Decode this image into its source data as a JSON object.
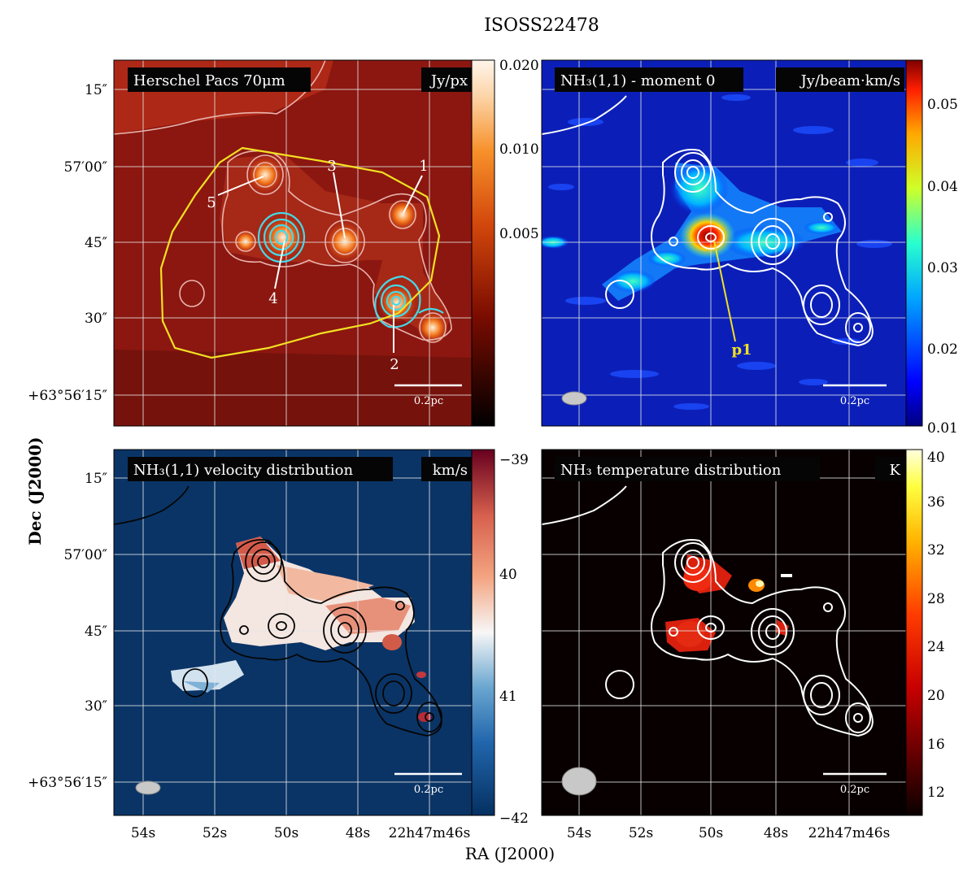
{
  "figure": {
    "title": "ISOSS22478",
    "xlabel": "RA (J2000)",
    "ylabel": "Dec (J2000)",
    "ra_ticks": [
      "54s",
      "52s",
      "50s",
      "48s",
      "22h47m46s"
    ],
    "dec_ticks": [
      "15″",
      "57′00″",
      "45″",
      "30″",
      "+63°56′15″"
    ],
    "scalebar_label": "0.2pc"
  },
  "chart_data": [
    {
      "type": "heatmap",
      "panel": "top-left",
      "label": "Herschel Pacs 70μm",
      "unit": "Jy/px",
      "colormap": "gist_heat",
      "colorbar": {
        "ticks": [
          "0.020",
          "0.010",
          "0.005"
        ],
        "scale": "log"
      },
      "sources": [
        {
          "id": "1",
          "ra_s": 46.4,
          "dec_s": 47
        },
        {
          "id": "2",
          "ra_s": 47.0,
          "dec_s": 32
        },
        {
          "id": "3",
          "ra_s": 48.3,
          "dec_s": 45
        },
        {
          "id": "4",
          "ra_s": 50.0,
          "dec_s": 45
        },
        {
          "id": "5",
          "ra_s": 50.6,
          "dec_s": 58
        }
      ]
    },
    {
      "type": "heatmap",
      "panel": "top-right",
      "label": "NH₃(1,1) - moment 0",
      "unit": "Jy/beam·km/s",
      "colormap": "jet",
      "colorbar": {
        "ticks": [
          "0.05",
          "0.04",
          "0.03",
          "0.02",
          "0.01"
        ],
        "range": [
          0.01,
          0.055
        ]
      },
      "peak_label": "p1"
    },
    {
      "type": "heatmap",
      "panel": "bottom-left",
      "label": "NH₃(1,1) velocity distribution",
      "unit": "km/s",
      "colormap": "RdBu",
      "colorbar": {
        "ticks": [
          "−39",
          "40",
          "41",
          "−42"
        ],
        "range": [
          -42,
          -39
        ]
      }
    },
    {
      "type": "heatmap",
      "panel": "bottom-right",
      "label": "NH₃ temperature distribution",
      "unit": "K",
      "colormap": "hot",
      "colorbar": {
        "ticks": [
          "40",
          "36",
          "32",
          "28",
          "24",
          "20",
          "16",
          "12"
        ],
        "range": [
          10,
          40
        ]
      }
    }
  ]
}
